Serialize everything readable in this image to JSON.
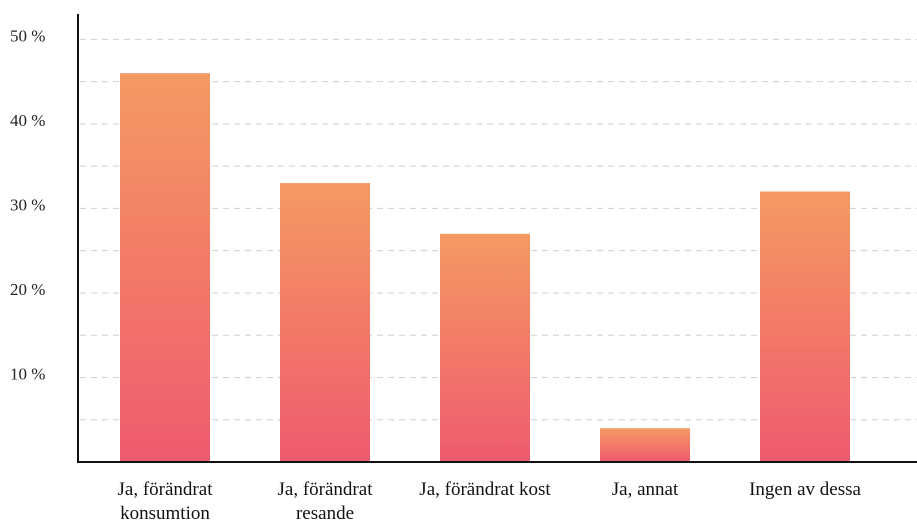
{
  "chart_data": {
    "type": "bar",
    "categories": [
      "Ja, förändrat konsumtion",
      "Ja, förändrat resande",
      "Ja, förändrat kost",
      "Ja, annat",
      "Ingen av dessa"
    ],
    "values": [
      46,
      33,
      27,
      4,
      32
    ],
    "color": [
      "#f59a62",
      "#ef5a6e"
    ],
    "ylim": [
      0,
      53
    ],
    "yticks": [
      {
        "value": 10,
        "label": "10 %"
      },
      {
        "value": 20,
        "label": "20 %"
      },
      {
        "value": 30,
        "label": "30 %"
      },
      {
        "value": 40,
        "label": "40 %"
      },
      {
        "value": 50,
        "label": "50 %"
      }
    ],
    "minor_grid": [
      5,
      15,
      25,
      35,
      45
    ],
    "grid": true
  }
}
